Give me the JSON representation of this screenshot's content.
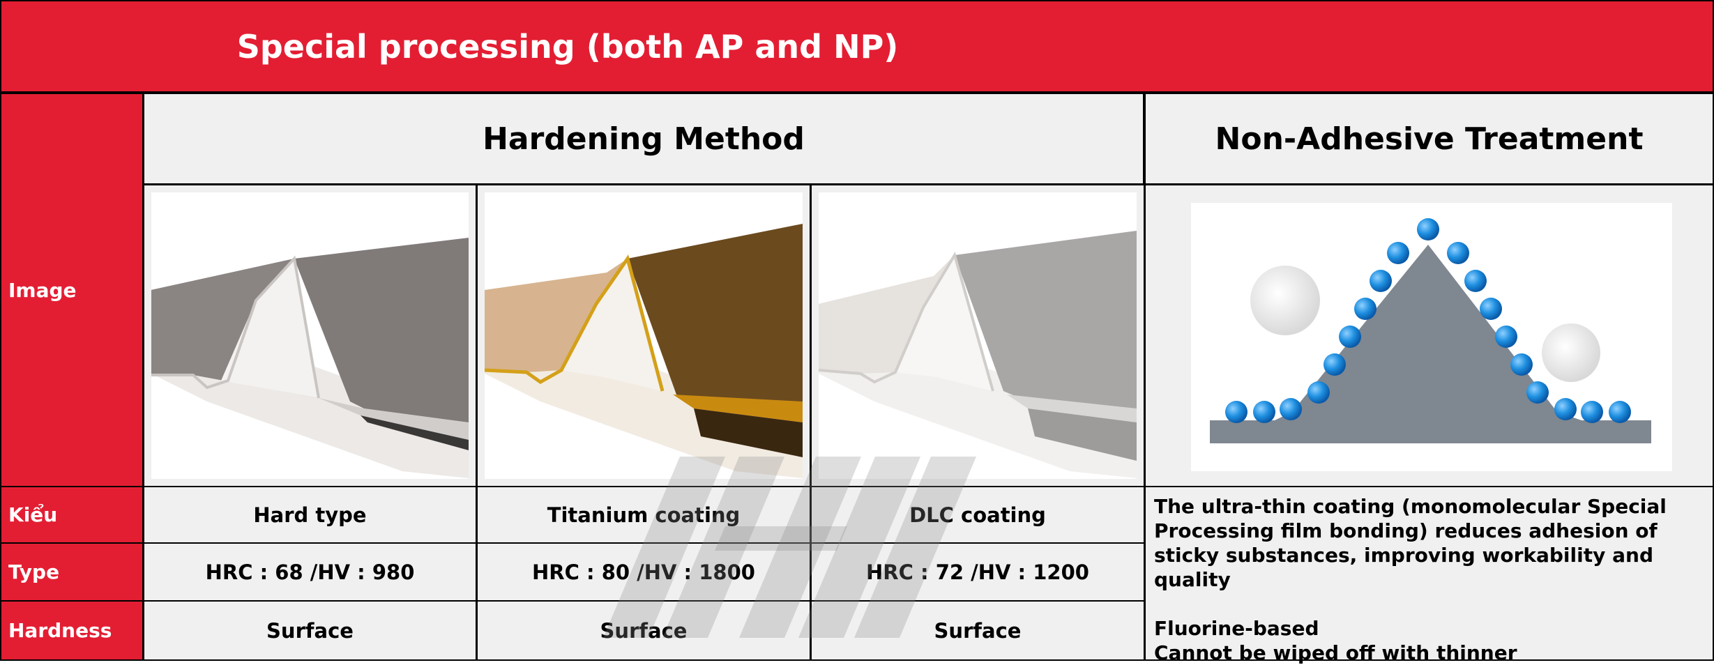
{
  "title": "Special processing (both AP and NP)",
  "row_labels": {
    "image": "Image",
    "kieu": "Kiểu",
    "type": "Type",
    "hardness": "Hardness"
  },
  "headers": {
    "hardening": "Hardening Method",
    "non_adhesive": "Non-Adhesive Treatment"
  },
  "columns": [
    {
      "kieu": "Hard type",
      "type": "HRC : 68 /HV : 980",
      "hardness": "Surface",
      "finish_color": "#7b7675"
    },
    {
      "kieu": "Titanium coating",
      "type": "HRC : 80 /HV : 1800",
      "hardness": "Surface",
      "finish_color": "#6b4a1e"
    },
    {
      "kieu": "DLC coating",
      "type": "HRC : 72 /HV : 1200",
      "hardness": "Surface",
      "finish_color": "#a9a6a6"
    }
  ],
  "non_adhesive_description": "The ultra-thin coating (monomolecular Special Processing film bonding) reduces adhesion of sticky substances, improving workability and quality\n\nFluorine-based\nCannot be wiped off with thinner",
  "colors": {
    "header_red": "#e31e33",
    "cell_grey": "#f0f0f0",
    "grid_black": "#000000",
    "droplet_blue": "#1e8fe0",
    "triangle_slate": "#7f8790"
  }
}
